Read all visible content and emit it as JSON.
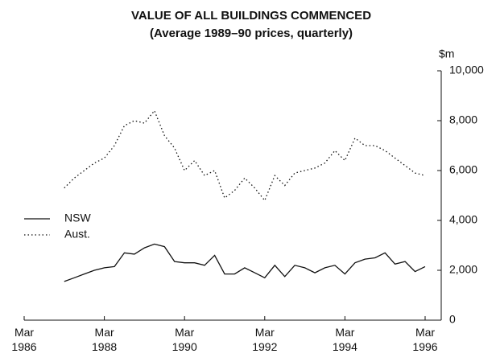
{
  "chart_data": {
    "type": "line",
    "title": "VALUE OF ALL BUILDINGS COMMENCED",
    "subtitle": "(Average 1989–90 prices, quarterly)",
    "y_label": "$m",
    "x": [
      "Mar 1986",
      "Jun 1986",
      "Sep 1986",
      "Dec 1986",
      "Mar 1987",
      "Jun 1987",
      "Sep 1987",
      "Dec 1987",
      "Mar 1988",
      "Jun 1988",
      "Sep 1988",
      "Dec 1988",
      "Mar 1989",
      "Jun 1989",
      "Sep 1989",
      "Dec 1989",
      "Mar 1990",
      "Jun 1990",
      "Sep 1990",
      "Dec 1990",
      "Mar 1991",
      "Jun 1991",
      "Sep 1991",
      "Dec 1991",
      "Mar 1992",
      "Jun 1992",
      "Sep 1992",
      "Dec 1992",
      "Mar 1993",
      "Jun 1993",
      "Sep 1993",
      "Dec 1993",
      "Mar 1994",
      "Jun 1994",
      "Sep 1994",
      "Dec 1994",
      "Mar 1995",
      "Jun 1995",
      "Sep 1995",
      "Dec 1995",
      "Mar 1996"
    ],
    "series": [
      {
        "name": "NSW",
        "color": "#111111",
        "dash": "none",
        "values": [
          null,
          null,
          null,
          null,
          1550,
          1700,
          1850,
          2000,
          2100,
          2150,
          2700,
          2650,
          2900,
          3050,
          2950,
          2350,
          2300,
          2300,
          2200,
          2600,
          1850,
          1850,
          2100,
          1900,
          1700,
          2200,
          1750,
          2200,
          2100,
          1900,
          2100,
          2200,
          1850,
          2300,
          2450,
          2500,
          2700,
          2250,
          2350,
          1950,
          2150
        ]
      },
      {
        "name": "Aust.",
        "color": "#111111",
        "dash": "1.5 3",
        "values": [
          null,
          null,
          null,
          null,
          5300,
          5700,
          6000,
          6300,
          6500,
          7000,
          7800,
          8000,
          7900,
          8400,
          7400,
          6900,
          6000,
          6400,
          5800,
          6000,
          4900,
          5200,
          5700,
          5300,
          4800,
          5800,
          5400,
          5900,
          6000,
          6100,
          6300,
          6800,
          6400,
          7300,
          7000,
          7000,
          6800,
          6500,
          6200,
          5900,
          5800
        ]
      }
    ],
    "xticks": [
      "Mar 1986",
      "Mar 1988",
      "Mar 1990",
      "Mar 1992",
      "Mar 1994",
      "Mar 1996"
    ],
    "ylim": [
      0,
      10000
    ],
    "yticks": [
      0,
      {
        "value": 2000,
        "label": "2,000"
      },
      {
        "value": 4000,
        "label": "4,000"
      },
      {
        "value": 6000,
        "label": "6,000"
      },
      {
        "value": 8000,
        "label": "8,000"
      },
      {
        "value": 10000,
        "label": "10,000"
      }
    ],
    "grid": false
  }
}
